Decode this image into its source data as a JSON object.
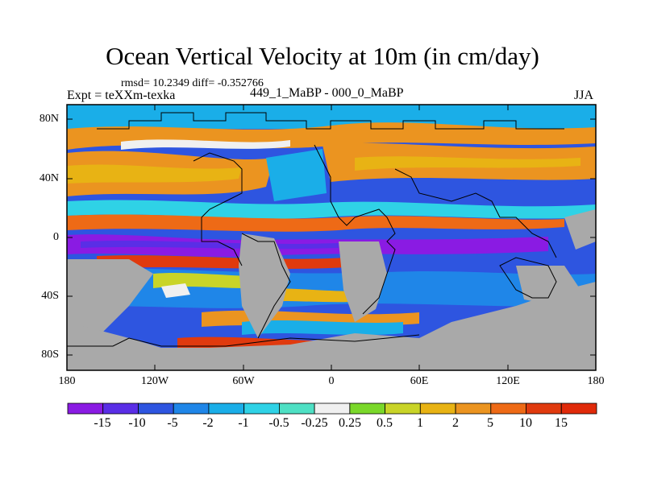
{
  "title": "Ocean Vertical Velocity at 10m (in cm/day)",
  "stats": "rmsd= 10.2349 diff= -0.352766",
  "expt": "Expt = teXXm-texka",
  "difference_label": "449_1_MaBP - 000_0_MaBP",
  "season": "JJA",
  "lat_labels": [
    "80N",
    "40N",
    "0",
    "40S",
    "80S"
  ],
  "lon_labels": [
    "180",
    "120W",
    "60W",
    "0",
    "60E",
    "120E",
    "180"
  ],
  "colorbar": {
    "labels": [
      "-15",
      "-10",
      "-5",
      "-2",
      "-1",
      "-0.5",
      "-0.25",
      "0.25",
      "0.5",
      "1",
      "2",
      "5",
      "10",
      "15"
    ],
    "colors": [
      "#8a1be3",
      "#5a2ee6",
      "#2e55e0",
      "#1f86e8",
      "#1aaee8",
      "#2fd2e6",
      "#4ee0c4",
      "#f0f0f0",
      "#7ad82a",
      "#c9d428",
      "#e8b314",
      "#eb9420",
      "#ee6a16",
      "#e03a0e",
      "#e02a0a"
    ]
  },
  "colors": {
    "land": "#a9a9a9"
  }
}
